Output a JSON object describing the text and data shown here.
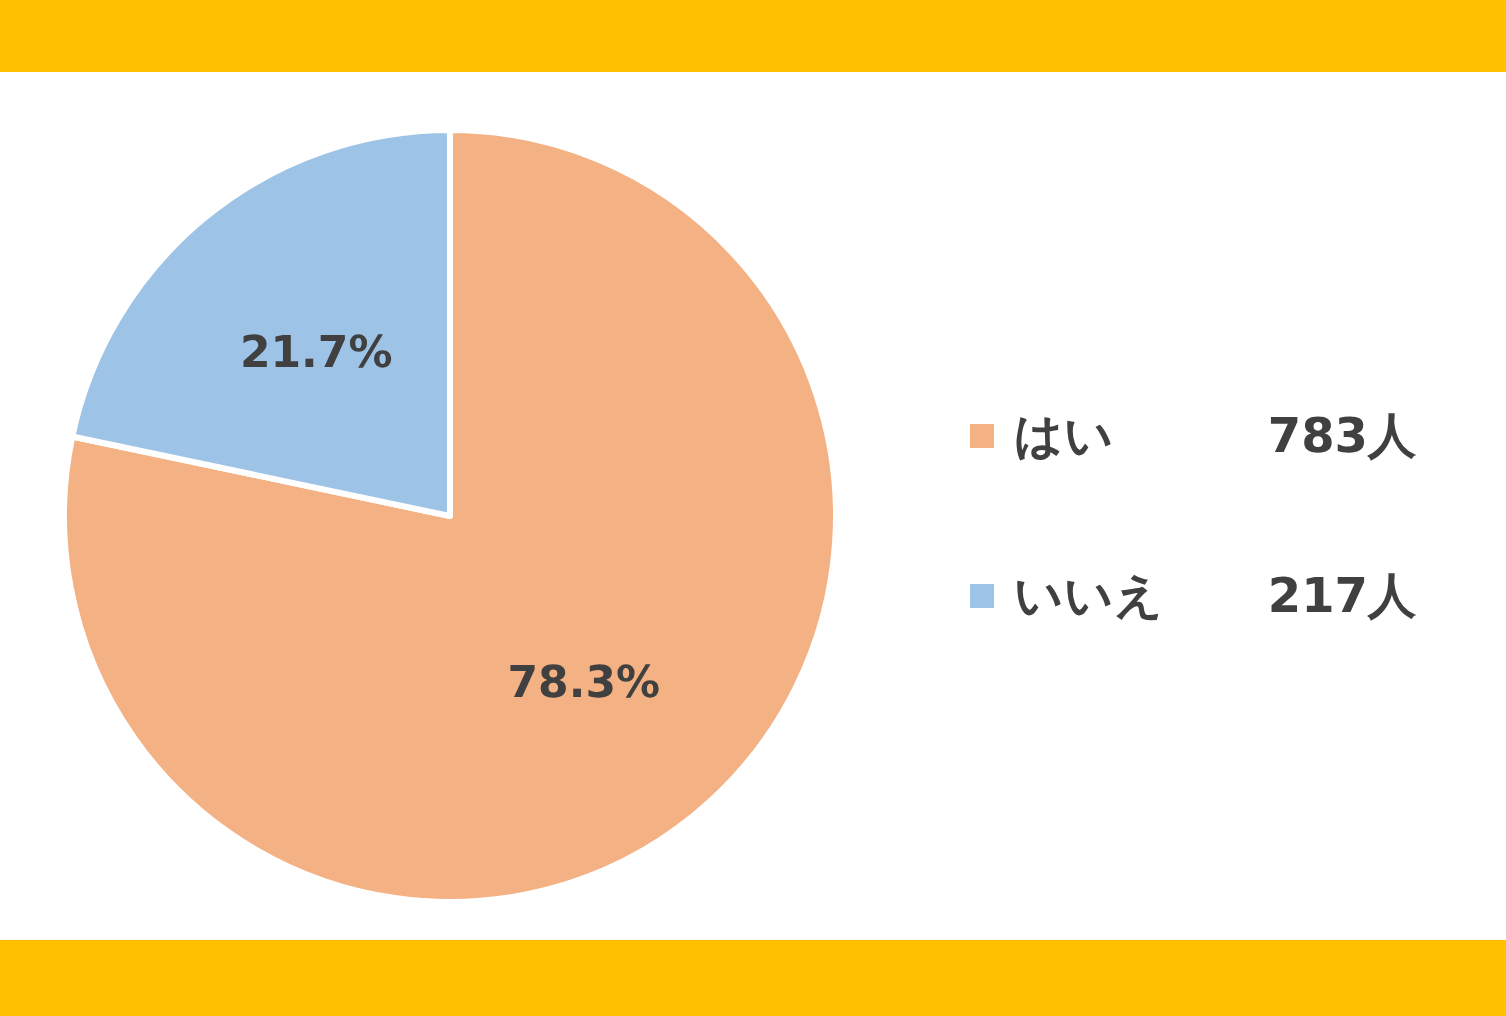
{
  "chart_data": {
    "type": "pie",
    "categories": [
      "はい",
      "いいえ"
    ],
    "values": [
      78.3,
      21.7
    ],
    "colors": [
      "#f4b183",
      "#9dc3e6"
    ],
    "value_labels": [
      "78.3%",
      "21.7%"
    ],
    "annotations": [
      "783人",
      "217人"
    ],
    "legend": "right"
  }
}
